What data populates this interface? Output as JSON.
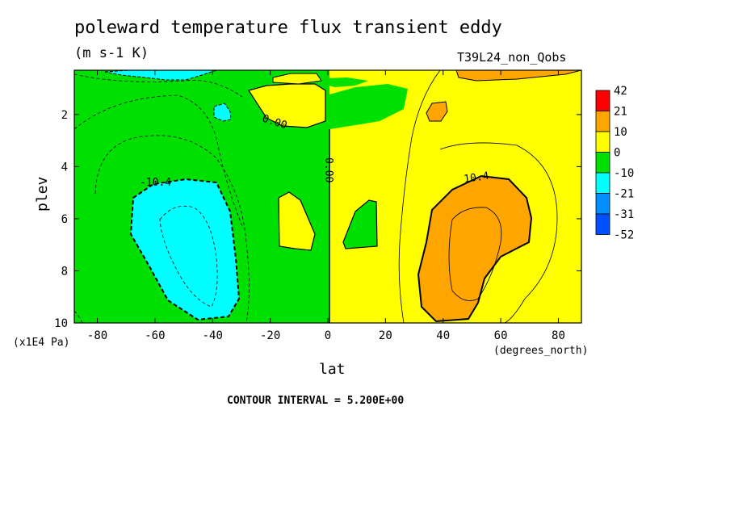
{
  "title": "poleward temperature flux transient eddy",
  "units": "(m s-1 K)",
  "experiment": "T39L24_non_Qobs",
  "contour_interval": "CONTOUR INTERVAL = 5.200E+00",
  "chart_data": {
    "type": "contour",
    "xlabel": "lat",
    "xunits": "(degrees_north)",
    "ylabel": "plev",
    "yunits": "(x1E4 Pa)",
    "xlim": [
      -88,
      88
    ],
    "ylim": [
      10,
      0.3
    ],
    "xticks": [
      -80,
      -60,
      -40,
      -20,
      0,
      20,
      40,
      60,
      80
    ],
    "xtick_labels": [
      "-80",
      "-60",
      "-40",
      "-20",
      "0",
      "20",
      "40",
      "60",
      "80"
    ],
    "yticks": [
      2,
      4,
      6,
      8,
      10
    ],
    "ytick_labels": [
      "2",
      "4",
      "6",
      "8",
      "10"
    ],
    "colorbar": {
      "labels": [
        "42",
        "21",
        "10",
        "0",
        "-10",
        "-21",
        "-31",
        "-52"
      ],
      "colors": [
        "#ff0000",
        "#ffa500",
        "#ffff00",
        "#00e000",
        "#00ffff",
        "#0090ff",
        "#0050ff"
      ]
    },
    "contour_labels": [
      "-10.4",
      "0.00",
      "0.00",
      "10.4"
    ],
    "colors": {
      "negative_fill": "#00e000",
      "positive_fill": "#ffff00",
      "strong_negative_fill": "#00ffff",
      "strong_positive_fill": "#ffa500"
    }
  }
}
